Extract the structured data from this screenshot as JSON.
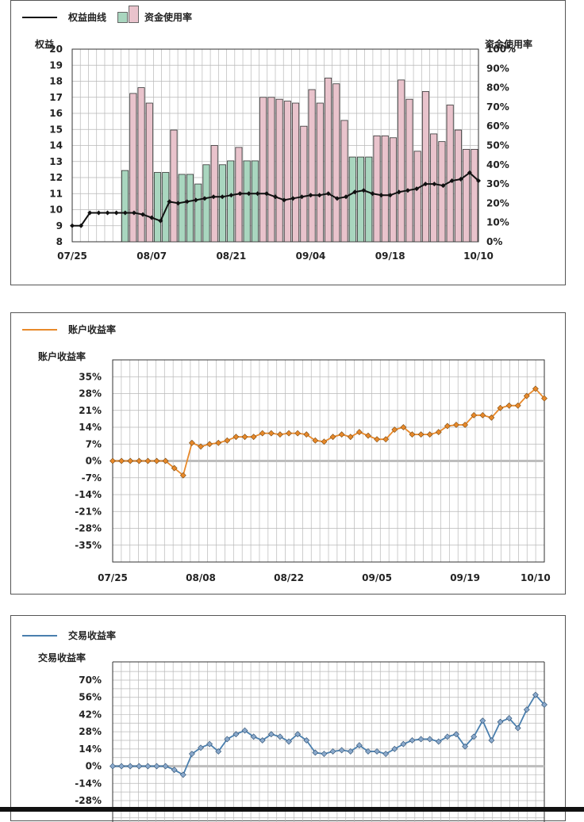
{
  "chart_data": [
    {
      "type": "bar+line",
      "legend": {
        "line_label": "权益曲线",
        "bar_label": "资金使用率"
      },
      "ylabel_left": "权益",
      "ylabel_right": "资金使用率",
      "ylim_left": [
        8,
        20
      ],
      "yticks_left": [
        "8",
        "9",
        "10",
        "11",
        "12",
        "13",
        "14",
        "15",
        "16",
        "17",
        "18",
        "19",
        "20"
      ],
      "ylim_right": [
        0,
        100
      ],
      "yticks_right": [
        "0%",
        "10%",
        "20%",
        "30%",
        "40%",
        "50%",
        "60%",
        "70%",
        "80%",
        "90%",
        "100%"
      ],
      "xticks": [
        {
          "label": "07/25",
          "index": 0
        },
        {
          "label": "08/07",
          "index": 9
        },
        {
          "label": "08/21",
          "index": 18
        },
        {
          "label": "09/04",
          "index": 27
        },
        {
          "label": "09/18",
          "index": 36
        },
        {
          "label": "10/10",
          "index": 46
        }
      ],
      "n_points": 47,
      "colors": {
        "line": "#111111",
        "bar_pink": "#e9c3cc",
        "bar_green": "#a9d6bf",
        "grid": "#b8b8b8"
      },
      "bars": [
        {
          "x": 6,
          "value": 37,
          "color": "green"
        },
        {
          "x": 7,
          "value": 77,
          "color": "pink"
        },
        {
          "x": 8,
          "value": 80,
          "color": "pink"
        },
        {
          "x": 9,
          "value": 72,
          "color": "pink"
        },
        {
          "x": 10,
          "value": 36,
          "color": "green"
        },
        {
          "x": 11,
          "value": 36,
          "color": "green"
        },
        {
          "x": 12,
          "value": 58,
          "color": "pink"
        },
        {
          "x": 13,
          "value": 35,
          "color": "green"
        },
        {
          "x": 14,
          "value": 35,
          "color": "green"
        },
        {
          "x": 15,
          "value": 30,
          "color": "green"
        },
        {
          "x": 16,
          "value": 40,
          "color": "green"
        },
        {
          "x": 17,
          "value": 50,
          "color": "pink"
        },
        {
          "x": 18,
          "value": 40,
          "color": "green"
        },
        {
          "x": 19,
          "value": 42,
          "color": "green"
        },
        {
          "x": 20,
          "value": 49,
          "color": "pink"
        },
        {
          "x": 21,
          "value": 42,
          "color": "green"
        },
        {
          "x": 22,
          "value": 42,
          "color": "green"
        },
        {
          "x": 23,
          "value": 75,
          "color": "pink"
        },
        {
          "x": 24,
          "value": 75,
          "color": "pink"
        },
        {
          "x": 25,
          "value": 74,
          "color": "pink"
        },
        {
          "x": 26,
          "value": 73,
          "color": "pink"
        },
        {
          "x": 27,
          "value": 72,
          "color": "pink"
        },
        {
          "x": 28,
          "value": 60,
          "color": "pink"
        },
        {
          "x": 29,
          "value": 79,
          "color": "pink"
        },
        {
          "x": 30,
          "value": 72,
          "color": "pink"
        },
        {
          "x": 31,
          "value": 85,
          "color": "pink"
        },
        {
          "x": 32,
          "value": 82,
          "color": "pink"
        },
        {
          "x": 33,
          "value": 63,
          "color": "pink"
        },
        {
          "x": 34,
          "value": 44,
          "color": "green"
        },
        {
          "x": 35,
          "value": 44,
          "color": "green"
        },
        {
          "x": 36,
          "value": 44,
          "color": "green"
        },
        {
          "x": 37,
          "value": 55,
          "color": "pink"
        },
        {
          "x": 38,
          "value": 55,
          "color": "pink"
        },
        {
          "x": 39,
          "value": 54,
          "color": "pink"
        },
        {
          "x": 40,
          "value": 84,
          "color": "pink"
        },
        {
          "x": 41,
          "value": 74,
          "color": "pink"
        },
        {
          "x": 42,
          "value": 47,
          "color": "pink"
        },
        {
          "x": 43,
          "value": 78,
          "color": "pink"
        },
        {
          "x": 44,
          "value": 56,
          "color": "pink"
        },
        {
          "x": 45,
          "value": 52,
          "color": "pink"
        },
        {
          "x": 46,
          "value": 71,
          "color": "pink"
        },
        {
          "x": 47,
          "value": 58,
          "color": "pink"
        },
        {
          "x": 48,
          "value": 48,
          "color": "pink"
        },
        {
          "x": 49,
          "value": 48,
          "color": "pink"
        }
      ],
      "line": [
        9,
        9,
        9.8,
        9.8,
        9.8,
        9.8,
        9.8,
        9.8,
        9.7,
        9.5,
        9.3,
        10.5,
        10.4,
        10.5,
        10.6,
        10.7,
        10.8,
        10.8,
        10.9,
        11,
        11,
        11,
        11,
        10.8,
        10.6,
        10.7,
        10.8,
        10.9,
        10.9,
        11,
        10.7,
        10.8,
        11.1,
        11.2,
        11,
        10.9,
        10.9,
        11.1,
        11.2,
        11.3,
        11.6,
        11.6,
        11.5,
        11.8,
        11.9,
        12.3,
        11.8
      ]
    },
    {
      "type": "line",
      "legend": {
        "line_label": "账户收益率"
      },
      "ylabel": "账户收益率",
      "ylim": [
        -42,
        42
      ],
      "yticks": [
        "35%",
        "28%",
        "21%",
        "14%",
        "7%",
        "0%",
        "-7%",
        "-14%",
        "-21%",
        "-28%",
        "-35%"
      ],
      "xticks": [
        {
          "label": "07/25",
          "index": 0
        },
        {
          "label": "08/08",
          "index": 10
        },
        {
          "label": "08/22",
          "index": 20
        },
        {
          "label": "09/05",
          "index": 30
        },
        {
          "label": "09/19",
          "index": 40
        },
        {
          "label": "10/10",
          "index": 48
        }
      ],
      "colors": {
        "line": "#e8892a",
        "marker": "#e8892a",
        "grid": "#b8b8b8"
      },
      "values": [
        0,
        0,
        0,
        0,
        0,
        0,
        0,
        -3,
        -6,
        7.5,
        6,
        7,
        7.5,
        8.5,
        10,
        10,
        10,
        11.5,
        11.5,
        11,
        11.5,
        11.5,
        11,
        8.5,
        8,
        10,
        11,
        10,
        12,
        10.5,
        9,
        9,
        13,
        14,
        11,
        11,
        11,
        12,
        14.5,
        15,
        15,
        19,
        19,
        18,
        22,
        23,
        23,
        27,
        30,
        26
      ]
    },
    {
      "type": "line",
      "legend": {
        "line_label": "交易收益率"
      },
      "ylabel": "交易收益率",
      "ylim": [
        -40,
        80
      ],
      "yticks": [
        "70%",
        "56%",
        "42%",
        "28%",
        "14%",
        "0%",
        "-14%",
        "-28%"
      ],
      "colors": {
        "line": "#4a7fae",
        "marker": "#8aa9cc",
        "grid": "#b8b8b8"
      },
      "values": [
        0,
        0,
        0,
        0,
        0,
        0,
        0,
        -3,
        -7,
        10,
        15,
        18,
        12,
        22,
        26,
        29,
        24,
        21,
        26,
        24,
        20,
        26,
        21,
        11,
        10,
        12,
        13,
        12,
        17,
        12,
        12,
        10,
        14,
        18,
        21,
        22,
        22,
        20,
        24,
        26,
        16,
        24,
        37,
        21,
        36,
        39,
        31,
        46,
        58,
        50
      ]
    }
  ]
}
